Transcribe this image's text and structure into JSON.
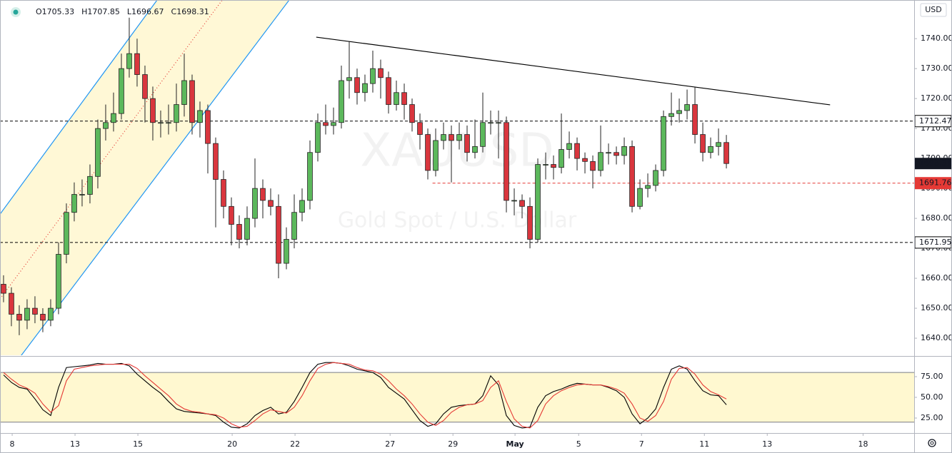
{
  "chart_data": [
    {
      "type": "candlestick",
      "symbol": "XAUUSD",
      "description": "Gold Spot / U.S. Dollar",
      "ohlc_header": [
        "O1705.33",
        "H1707.85",
        "L1696.67",
        "C1698.31"
      ],
      "currency": "USD",
      "xlim": [
        -0.45,
        115.9
      ],
      "xticks": [
        {
          "value": 1.1,
          "label": "8"
        },
        {
          "value": 9.1,
          "label": "13"
        },
        {
          "value": 17.1,
          "label": "15"
        },
        {
          "value": 29.1,
          "label": "20"
        },
        {
          "value": 37.1,
          "label": "22"
        },
        {
          "value": 49.2,
          "label": "27"
        },
        {
          "value": 57.2,
          "label": "29"
        },
        {
          "value": 65.1,
          "label": "May"
        },
        {
          "value": 73.2,
          "label": "5"
        },
        {
          "value": 81.2,
          "label": "7"
        },
        {
          "value": 89.2,
          "label": "11"
        },
        {
          "value": 97.2,
          "label": "13"
        },
        {
          "value": 109.4,
          "label": "18"
        }
      ],
      "ylim": [
        1634.3,
        1752.9
      ],
      "yticks": [
        {
          "value": 1640,
          "label": "1640.00"
        },
        {
          "value": 1650,
          "label": "1650.00"
        },
        {
          "value": 1660,
          "label": "1660.00"
        },
        {
          "value": 1670,
          "label": "1670.00"
        },
        {
          "value": 1680,
          "label": "1680.00"
        },
        {
          "value": 1690,
          "label": "1690.00"
        },
        {
          "value": 1700,
          "label": "1700.00"
        },
        {
          "value": 1710,
          "label": "1710.00"
        },
        {
          "value": 1720,
          "label": "1720.00"
        },
        {
          "value": 1730,
          "label": "1730.00"
        },
        {
          "value": 1740,
          "label": "1740.00"
        }
      ],
      "up_color": "#5cb85c",
      "down_color": "#d9363e",
      "open": [
        1658,
        1655,
        1648,
        1646,
        1650,
        1648,
        1646,
        1650,
        1668,
        1682,
        1688,
        1688,
        1694,
        1710,
        1712,
        1715,
        1730,
        1735,
        1728,
        1720,
        1712,
        1712,
        1712,
        1718,
        1726,
        1712,
        1716,
        1705,
        1693,
        1684,
        1678,
        1673,
        1680,
        1690,
        1686,
        1684,
        1665,
        1673,
        1682,
        1686,
        1702,
        1712,
        1711,
        1712,
        1726,
        1727,
        1722,
        1725,
        1730,
        1727,
        1718,
        1722,
        1718,
        1712,
        1708,
        1696,
        1706,
        1708,
        1706,
        1708,
        1702,
        1704,
        1712,
        1712,
        1712,
        1686,
        1686,
        1684,
        1673,
        1698,
        1698,
        1697,
        1703,
        1705,
        1700,
        1699,
        1696,
        1702,
        1702,
        1701,
        1704,
        1684,
        1690,
        1691,
        1696,
        1714,
        1715,
        1716,
        1718,
        1708,
        1702,
        1704,
        1705.33
      ],
      "high": [
        1661,
        1657,
        1651,
        1653,
        1654,
        1650,
        1653,
        1672,
        1685,
        1692,
        1693,
        1698,
        1713,
        1718,
        1722,
        1735,
        1747,
        1740,
        1731,
        1724,
        1716,
        1718,
        1725,
        1735,
        1728,
        1719,
        1718,
        1707,
        1696,
        1687,
        1681,
        1684,
        1700,
        1693,
        1690,
        1688,
        1677,
        1688,
        1690,
        1706,
        1715,
        1718,
        1717,
        1731,
        1739,
        1730,
        1728,
        1736,
        1733,
        1729,
        1726,
        1725,
        1720,
        1715,
        1710,
        1710,
        1712,
        1711,
        1712,
        1711,
        1713,
        1722,
        1716,
        1716,
        1714,
        1690,
        1688,
        1687,
        1700,
        1702,
        1701,
        1715,
        1709,
        1707,
        1702,
        1701,
        1711,
        1705,
        1704,
        1707,
        1706,
        1693,
        1695,
        1698,
        1716,
        1722,
        1720,
        1723,
        1724,
        1712,
        1707,
        1710,
        1707.85
      ],
      "low": [
        1652,
        1644,
        1641,
        1643,
        1645,
        1642,
        1644,
        1648,
        1665,
        1679,
        1684,
        1685,
        1690,
        1706,
        1709,
        1713,
        1727,
        1724,
        1712,
        1706,
        1707,
        1708,
        1709,
        1714,
        1708,
        1707,
        1695,
        1677,
        1680,
        1671,
        1670,
        1671,
        1677,
        1680,
        1681,
        1660,
        1663,
        1670,
        1679,
        1683,
        1699,
        1708,
        1708,
        1710,
        1720,
        1718,
        1719,
        1722,
        1720,
        1715,
        1716,
        1713,
        1709,
        1703,
        1693,
        1694,
        1703,
        1692,
        1703,
        1699,
        1700,
        1702,
        1708,
        1700,
        1682,
        1681,
        1680,
        1670,
        1672,
        1693,
        1693,
        1695,
        1700,
        1696,
        1695,
        1690,
        1694,
        1698,
        1698,
        1698,
        1682,
        1683,
        1687,
        1689,
        1694,
        1711,
        1712,
        1713,
        1705,
        1699,
        1700,
        1701,
        1696.67
      ],
      "close": [
        1655,
        1648,
        1646,
        1650,
        1648,
        1646,
        1650,
        1668,
        1682,
        1688,
        1688,
        1694,
        1710,
        1712,
        1715,
        1730,
        1735,
        1728,
        1720,
        1712,
        1712,
        1712,
        1718,
        1726,
        1712,
        1716,
        1705,
        1693,
        1684,
        1678,
        1673,
        1680,
        1690,
        1686,
        1684,
        1665,
        1673,
        1682,
        1686,
        1702,
        1712,
        1711,
        1712,
        1726,
        1727,
        1722,
        1725,
        1730,
        1727,
        1718,
        1722,
        1718,
        1712,
        1708,
        1696,
        1706,
        1708,
        1706,
        1708,
        1702,
        1704,
        1712,
        1712,
        1712,
        1686,
        1686,
        1684,
        1673,
        1698,
        1698,
        1697,
        1703,
        1705,
        1700,
        1699,
        1696,
        1702,
        1702,
        1701,
        1704,
        1684,
        1690,
        1691,
        1696,
        1714,
        1715,
        1716,
        1718,
        1708,
        1702,
        1704,
        1705.33,
        1698.31
      ],
      "price_lines": [
        {
          "value": 1712.47,
          "color": "#000000"
        },
        {
          "value": 1671.95,
          "color": "#000000"
        },
        {
          "value": 1691.76,
          "color": "#e53935",
          "start": 54.6
        }
      ],
      "trendline": {
        "x": [
          39.8,
          105.2
        ],
        "y": [
          1740.5,
          1717.9
        ],
        "color": "#000000"
      },
      "channel": {
        "upper": {
          "x": [
            -0.45,
            19.55
          ],
          "y": [
            1681.4,
            1752.9
          ]
        },
        "lower": {
          "x": [
            2.27,
            36.36
          ],
          "y": [
            1634.3,
            1752.9
          ]
        },
        "color": "#2196f3",
        "fill": "#fff8d6",
        "mid_color": "#e53935"
      }
    },
    {
      "type": "line",
      "ylim": [
        6.9,
        99.1
      ],
      "yticks": [
        {
          "value": 25,
          "label": "25.00"
        },
        {
          "value": 50,
          "label": "50.00"
        },
        {
          "value": 75,
          "label": "75.00"
        }
      ],
      "band": [
        20,
        80
      ],
      "band_color": "#fff8d0",
      "series": [
        {
          "color": "#000000",
          "values": [
            77,
            68,
            62,
            60,
            48,
            35,
            28,
            62,
            86,
            87,
            88,
            89,
            91,
            90,
            90,
            91,
            88,
            78,
            70,
            62,
            55,
            45,
            36,
            33,
            32,
            31,
            30,
            28,
            20,
            14,
            13,
            18,
            28,
            34,
            38,
            30,
            32,
            45,
            62,
            80,
            90,
            92,
            92,
            91,
            88,
            84,
            82,
            80,
            74,
            62,
            55,
            48,
            35,
            22,
            15,
            18,
            30,
            38,
            40,
            41,
            42,
            52,
            76,
            65,
            28,
            16,
            13,
            14,
            38,
            52,
            57,
            60,
            64,
            67,
            66,
            65,
            65,
            62,
            58,
            50,
            30,
            18,
            25,
            36,
            62,
            84,
            88,
            84,
            70,
            58,
            53,
            52,
            41
          ]
        },
        {
          "color": "#e53935",
          "values": [
            80,
            72,
            65,
            61,
            55,
            42,
            32,
            40,
            70,
            84,
            86,
            88,
            89,
            90,
            90,
            90,
            90,
            85,
            76,
            68,
            60,
            52,
            42,
            36,
            33,
            32,
            30,
            29,
            25,
            18,
            14,
            15,
            22,
            30,
            35,
            33,
            31,
            38,
            52,
            70,
            85,
            90,
            92,
            91,
            90,
            86,
            83,
            82,
            78,
            70,
            60,
            52,
            42,
            30,
            20,
            16,
            22,
            32,
            38,
            41,
            42,
            46,
            62,
            70,
            45,
            24,
            15,
            13,
            22,
            42,
            52,
            58,
            62,
            65,
            66,
            65,
            65,
            63,
            60,
            55,
            42,
            25,
            21,
            28,
            45,
            72,
            85,
            86,
            78,
            65,
            57,
            53,
            48
          ]
        }
      ]
    }
  ]
}
